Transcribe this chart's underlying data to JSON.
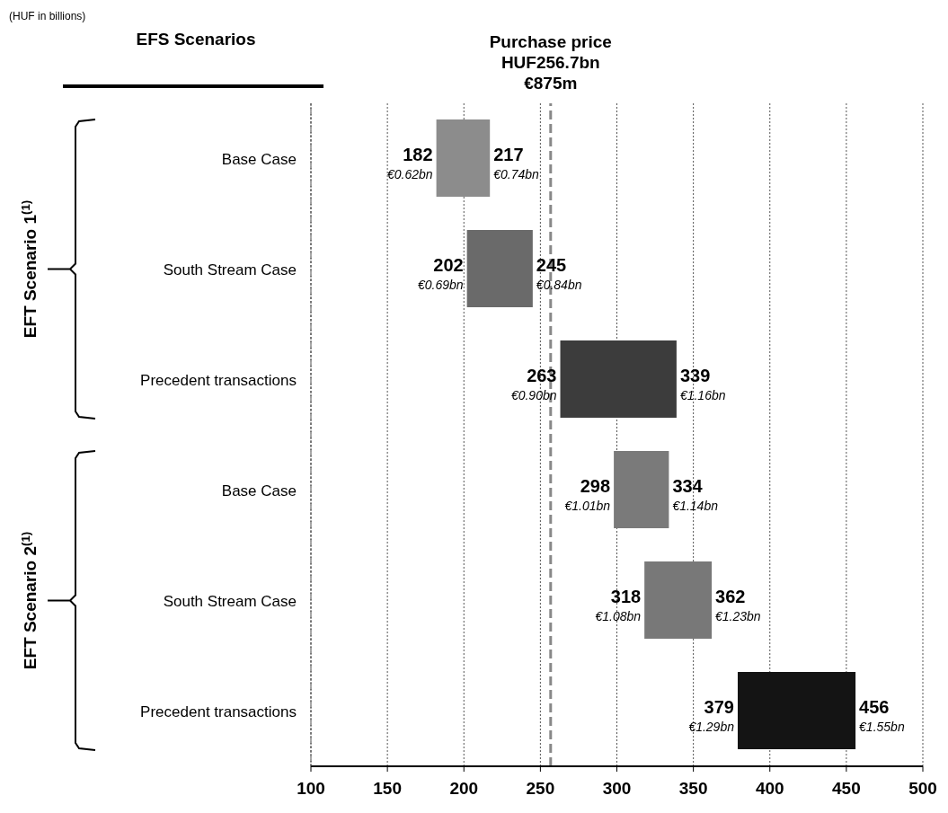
{
  "chart_data": {
    "type": "bar",
    "orientation": "horizontal",
    "categories": [
      "Base Case",
      "South Stream Case",
      "Precedent transactions",
      "Base Case",
      "South Stream Case",
      "Precedent transactions"
    ],
    "base": [
      182,
      202,
      263,
      298,
      318,
      379
    ],
    "values": [
      35,
      43,
      76,
      36,
      44,
      77
    ],
    "colors": [
      "#8c8c8c",
      "#6a6a6a",
      "#3c3c3c",
      "#7a7a7a",
      "#787878",
      "#141414"
    ],
    "xlim": [
      100,
      500
    ],
    "xticks": [
      100,
      150,
      200,
      250,
      300,
      350,
      400,
      450,
      500
    ],
    "grid": "x",
    "ref_lines": [
      {
        "axis": "x",
        "value": 256.7,
        "label": "Purchase price\nHUF256.7bn\n€875m",
        "color": "#888888",
        "line_style": "dashed"
      }
    ],
    "annotations": [
      "(HUF in billions)",
      "EFS Scenarios",
      "EFT Scenario 1$^{(1)}$",
      "EFT Scenario 2$^{(1)}$",
      "182",
      "€0.62bn",
      "217",
      "€0.74bn",
      "202",
      "€0.69bn",
      "245",
      "€0.84bn",
      "263",
      "€0.90bn",
      "339",
      "€1.16bn",
      "298",
      "€1.01bn",
      "334",
      "€1.14bn",
      "318",
      "€1.08bn",
      "362",
      "€1.23bn",
      "379",
      "€1.29bn",
      "456",
      "€1.55bn"
    ]
  }
}
